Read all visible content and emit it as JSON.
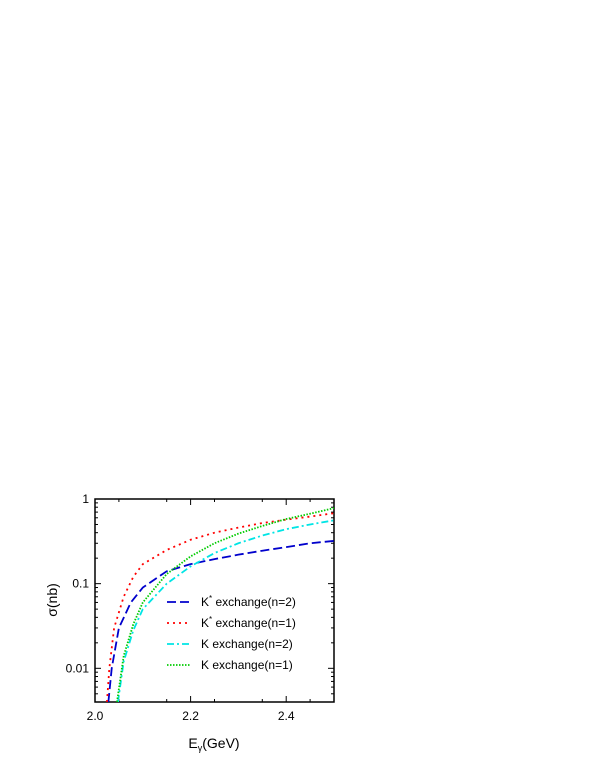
{
  "chart_data": {
    "type": "line",
    "xlabel": "E",
    "xlabel_sub": "γ",
    "xlabel_unit": "(GeV)",
    "ylabel": "σ(nb)",
    "xlim": [
      2.0,
      2.5
    ],
    "ylim": [
      0.004,
      1.0
    ],
    "yscale": "log",
    "x_ticks": [
      2.0,
      2.2,
      2.4
    ],
    "x_tick_labels": [
      "2.0",
      "2.2",
      "2.4"
    ],
    "y_ticks": [
      0.01,
      0.1,
      1
    ],
    "y_tick_labels": [
      "0.01",
      "0.1",
      "1"
    ],
    "grid": false,
    "legend_position": "bottom-right",
    "series": [
      {
        "name": "K* exchange(n=2)",
        "legend_base": "K",
        "legend_sup": "*",
        "legend_rest": " exchange(n=2)",
        "color": "#0000cc",
        "style": "dashed",
        "x": [
          2.028,
          2.035,
          2.05,
          2.075,
          2.1,
          2.15,
          2.2,
          2.25,
          2.3,
          2.35,
          2.4,
          2.45,
          2.5
        ],
        "values": [
          0.004,
          0.01,
          0.03,
          0.06,
          0.09,
          0.14,
          0.17,
          0.195,
          0.22,
          0.245,
          0.27,
          0.3,
          0.32
        ]
      },
      {
        "name": "K* exchange(n=1)",
        "legend_base": "K",
        "legend_sup": "*",
        "legend_rest": " exchange(n=1)",
        "color": "#ff0000",
        "style": "dotted",
        "x": [
          2.025,
          2.03,
          2.04,
          2.06,
          2.08,
          2.1,
          2.15,
          2.2,
          2.25,
          2.3,
          2.35,
          2.4,
          2.45,
          2.5
        ],
        "values": [
          0.004,
          0.01,
          0.03,
          0.07,
          0.12,
          0.17,
          0.25,
          0.33,
          0.4,
          0.46,
          0.52,
          0.57,
          0.62,
          0.68
        ]
      },
      {
        "name": "K exchange(n=2)",
        "legend_base": "K",
        "legend_sup": "",
        "legend_rest": "  exchange(n=2)",
        "color": "#00e5e5",
        "style": "dashdot",
        "x": [
          2.048,
          2.06,
          2.08,
          2.1,
          2.15,
          2.2,
          2.25,
          2.3,
          2.35,
          2.4,
          2.45,
          2.5
        ],
        "values": [
          0.004,
          0.012,
          0.028,
          0.05,
          0.1,
          0.16,
          0.23,
          0.3,
          0.37,
          0.44,
          0.5,
          0.56
        ]
      },
      {
        "name": "K exchange(n=1)",
        "legend_base": "K",
        "legend_sup": "",
        "legend_rest": "  exchange(n=1)",
        "color": "#00cc00",
        "style": "densedot",
        "x": [
          2.046,
          2.06,
          2.08,
          2.1,
          2.15,
          2.2,
          2.25,
          2.3,
          2.35,
          2.4,
          2.45,
          2.5
        ],
        "values": [
          0.004,
          0.014,
          0.033,
          0.06,
          0.13,
          0.21,
          0.3,
          0.39,
          0.48,
          0.58,
          0.67,
          0.78
        ]
      }
    ]
  }
}
